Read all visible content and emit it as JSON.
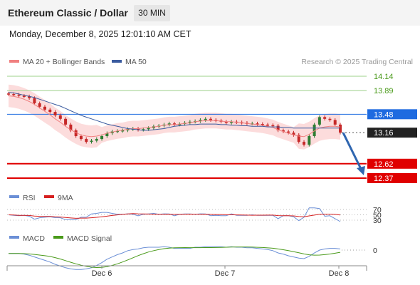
{
  "header": {
    "title": "Ethereum Classic / Dollar",
    "timeframe": "30 MIN",
    "datetime": "Monday, December 8, 2025 12:01:10 AM CET"
  },
  "credit": "Research © 2025 Trading Central",
  "colors": {
    "up_candle": "#2e7d32",
    "down_candle": "#c62828",
    "ma20": "#f08080",
    "ma50": "#3a5b9f",
    "bands": "#fbd0d0",
    "resistance": "#9ed08a",
    "pivot": "#1e6be0",
    "support": "#e00000",
    "last_price": "#222222",
    "arrow": "#2f66b0",
    "rsi": "#6b8fd6",
    "rsi_ma": "#d62020",
    "macd": "#6b8fd6",
    "macd_signal": "#4a9a1a"
  },
  "chart_data": [
    {
      "type": "candlestick",
      "title": "Ethereum Classic / Dollar",
      "legend": [
        {
          "name": "MA 20 + Bollinger Bands",
          "color": "#f08080"
        },
        {
          "name": "MA 50",
          "color": "#3a5b9f"
        }
      ],
      "levels": [
        {
          "value": 14.14,
          "label": "14.14",
          "kind": "resistance"
        },
        {
          "value": 13.89,
          "label": "13.89",
          "kind": "resistance"
        },
        {
          "value": 13.48,
          "label": "13.48",
          "kind": "pivot"
        },
        {
          "value": 13.16,
          "label": "13.16",
          "kind": "last"
        },
        {
          "value": 12.62,
          "label": "12.62",
          "kind": "support"
        },
        {
          "value": 12.37,
          "label": "12.37",
          "kind": "support"
        }
      ],
      "x_ticks": [
        "Dec 6",
        "Dec 7",
        "Dec 8"
      ],
      "close": [
        13.83,
        13.82,
        13.8,
        13.79,
        13.76,
        13.67,
        13.61,
        13.56,
        13.52,
        13.46,
        13.4,
        13.3,
        13.2,
        13.1,
        13.05,
        13.0,
        13.02,
        13.05,
        13.1,
        13.15,
        13.18,
        13.19,
        13.2,
        13.22,
        13.23,
        13.21,
        13.22,
        13.24,
        13.27,
        13.28,
        13.3,
        13.32,
        13.3,
        13.31,
        13.33,
        13.35,
        13.36,
        13.38,
        13.4,
        13.38,
        13.37,
        13.35,
        13.33,
        13.35,
        13.34,
        13.33,
        13.32,
        13.32,
        13.31,
        13.3,
        13.29,
        13.28,
        13.2,
        13.18,
        13.16,
        13.12,
        13.0,
        12.95,
        13.1,
        13.3,
        13.43,
        13.4,
        13.38,
        13.3,
        13.16
      ],
      "ma20": [
        13.8,
        13.79,
        13.77,
        13.74,
        13.7,
        13.65,
        13.59,
        13.53,
        13.47,
        13.4,
        13.34,
        13.27,
        13.21,
        13.16,
        13.12,
        13.1,
        13.09,
        13.1,
        13.12,
        13.15,
        13.17,
        13.19,
        13.2,
        13.22,
        13.23,
        13.23,
        13.24,
        13.25,
        13.26,
        13.27,
        13.29,
        13.3,
        13.3,
        13.31,
        13.32,
        13.33,
        13.35,
        13.36,
        13.37,
        13.37,
        13.37,
        13.36,
        13.35,
        13.35,
        13.34,
        13.33,
        13.32,
        13.31,
        13.3,
        13.29,
        13.27,
        13.25,
        13.21,
        13.18,
        13.15,
        13.12,
        13.1,
        13.09,
        13.13,
        13.19,
        13.24,
        13.26,
        13.27,
        13.27,
        13.26
      ],
      "ma50": [
        13.86,
        13.85,
        13.83,
        13.81,
        13.79,
        13.77,
        13.74,
        13.71,
        13.68,
        13.65,
        13.62,
        13.58,
        13.54,
        13.5,
        13.46,
        13.43,
        13.4,
        13.37,
        13.34,
        13.31,
        13.29,
        13.27,
        13.25,
        13.23,
        13.22,
        13.21,
        13.2,
        13.2,
        13.21,
        13.22,
        13.23,
        13.25,
        13.27,
        13.28,
        13.29,
        13.3,
        13.3,
        13.31,
        13.31,
        13.31,
        13.31,
        13.3,
        13.3,
        13.29,
        13.29,
        13.28,
        13.28,
        13.27,
        13.27,
        13.27,
        13.26,
        13.26,
        13.26,
        13.25,
        13.25,
        13.24,
        13.24,
        13.24,
        13.24,
        13.24,
        13.24,
        13.24,
        13.24,
        13.24,
        13.24
      ]
    },
    {
      "type": "line",
      "legend": [
        {
          "name": "RSI",
          "color": "#6b8fd6"
        },
        {
          "name": "9MA",
          "color": "#d62020"
        }
      ],
      "y_ticks": [
        70,
        50,
        30
      ]
    },
    {
      "type": "line",
      "legend": [
        {
          "name": "MACD",
          "color": "#6b8fd6"
        },
        {
          "name": "MACD Signal",
          "color": "#4a9a1a"
        }
      ],
      "y_ticks": [
        0
      ]
    }
  ]
}
